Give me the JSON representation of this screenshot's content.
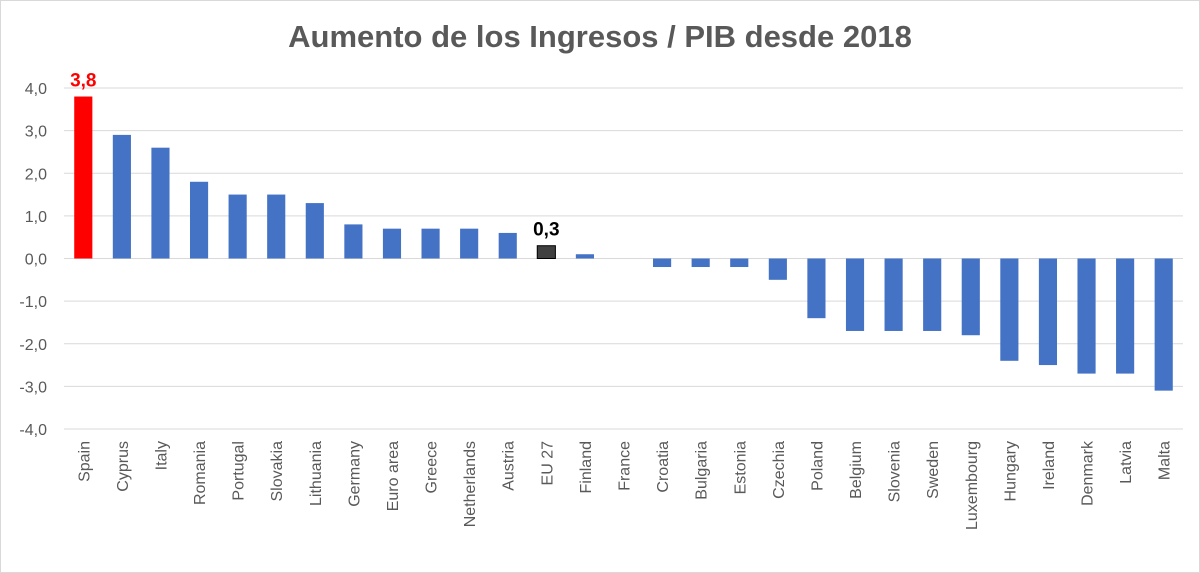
{
  "chart_data": {
    "type": "bar",
    "title": "Aumento de los Ingresos / PIB desde 2018",
    "xlabel": "",
    "ylabel": "",
    "ylim": [
      -4,
      4
    ],
    "yticks": [
      "4,0",
      "3,0",
      "2,0",
      "1,0",
      "0,0",
      "-1,0",
      "-2,0",
      "-3,0",
      "-4,0"
    ],
    "grid": true,
    "legend": "none",
    "colors": {
      "default": "#4472c4",
      "highlight": "#ff0000",
      "eu27": "#404040",
      "grid": "#d9d9d9",
      "text": "#595959"
    },
    "categories": [
      "Spain",
      "Cyprus",
      "Italy",
      "Romania",
      "Portugal",
      "Slovakia",
      "Lithuania",
      "Germany",
      "Euro area",
      "Greece",
      "Netherlands",
      "Austria",
      "EU 27",
      "Finland",
      "France",
      "Croatia",
      "Bulgaria",
      "Estonia",
      "Czechia",
      "Poland",
      "Belgium",
      "Slovenia",
      "Sweden",
      "Luxembourg",
      "Hungary",
      "Ireland",
      "Denmark",
      "Latvia",
      "Malta"
    ],
    "values": [
      3.8,
      2.9,
      2.6,
      1.8,
      1.5,
      1.5,
      1.3,
      0.8,
      0.7,
      0.7,
      0.7,
      0.6,
      0.3,
      0.1,
      0.0,
      -0.2,
      -0.2,
      -0.2,
      -0.5,
      -1.4,
      -1.7,
      -1.7,
      -1.7,
      -1.8,
      -2.4,
      -2.5,
      -2.7,
      -2.7,
      -3.1
    ],
    "bar_colors": [
      "highlight",
      "default",
      "default",
      "default",
      "default",
      "default",
      "default",
      "default",
      "default",
      "default",
      "default",
      "default",
      "eu27",
      "default",
      "default",
      "default",
      "default",
      "default",
      "default",
      "default",
      "default",
      "default",
      "default",
      "default",
      "default",
      "default",
      "default",
      "default",
      "default"
    ],
    "data_labels": [
      {
        "category": "Spain",
        "text": "3,8",
        "color": "#ff0000"
      },
      {
        "category": "EU 27",
        "text": "0,3",
        "color": "#000000"
      }
    ]
  }
}
